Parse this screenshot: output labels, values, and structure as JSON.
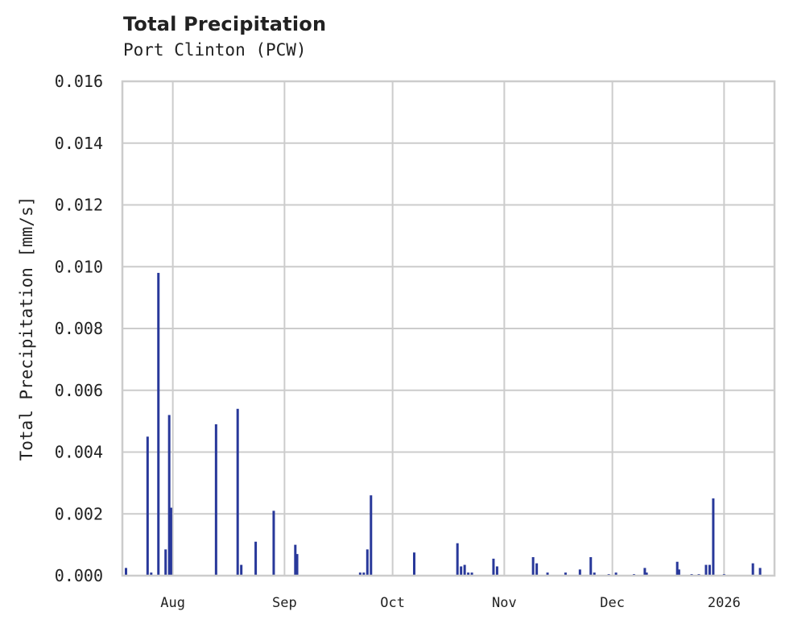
{
  "chart_data": {
    "type": "bar",
    "title": "Total Precipitation",
    "subtitle": "Port Clinton (PCW)",
    "xlabel": "",
    "ylabel": "Total Precipitation [mm/s]",
    "ylim": [
      0,
      0.016
    ],
    "yticks": [
      "0.000",
      "0.002",
      "0.004",
      "0.006",
      "0.008",
      "0.010",
      "0.012",
      "0.014",
      "0.016"
    ],
    "xlim": [
      "2025-07-18",
      "2026-01-15"
    ],
    "xticks": [
      {
        "label": "Aug",
        "date": "2025-08-01"
      },
      {
        "label": "Sep",
        "date": "2025-09-01"
      },
      {
        "label": "Oct",
        "date": "2025-10-01"
      },
      {
        "label": "Nov",
        "date": "2025-11-01"
      },
      {
        "label": "Dec",
        "date": "2025-12-01"
      },
      {
        "label": "2026",
        "date": "2026-01-01"
      }
    ],
    "grid": true,
    "legend": null,
    "bar_color": "#28389a",
    "grid_color": "#cccccc",
    "series": [
      {
        "name": "Total Precipitation",
        "points": [
          {
            "x": "2025-07-19",
            "y": 0.00025
          },
          {
            "x": "2025-07-25",
            "y": 0.0045
          },
          {
            "x": "2025-07-26",
            "y": 0.0001
          },
          {
            "x": "2025-07-28",
            "y": 0.0098
          },
          {
            "x": "2025-07-30",
            "y": 0.00085
          },
          {
            "x": "2025-07-31",
            "y": 0.0052
          },
          {
            "x": "2025-07-31T12",
            "y": 0.0022
          },
          {
            "x": "2025-08-13",
            "y": 0.0049
          },
          {
            "x": "2025-08-19",
            "y": 0.0054
          },
          {
            "x": "2025-08-20",
            "y": 0.00035
          },
          {
            "x": "2025-08-24",
            "y": 0.0011
          },
          {
            "x": "2025-08-29",
            "y": 0.0021
          },
          {
            "x": "2025-09-04",
            "y": 0.001
          },
          {
            "x": "2025-09-04T12",
            "y": 0.0007
          },
          {
            "x": "2025-09-22",
            "y": 0.0001
          },
          {
            "x": "2025-09-23",
            "y": 0.0001
          },
          {
            "x": "2025-09-24",
            "y": 0.00085
          },
          {
            "x": "2025-09-25",
            "y": 0.0026
          },
          {
            "x": "2025-10-07",
            "y": 0.00075
          },
          {
            "x": "2025-10-19",
            "y": 0.00105
          },
          {
            "x": "2025-10-20",
            "y": 0.0003
          },
          {
            "x": "2025-10-21",
            "y": 0.00035
          },
          {
            "x": "2025-10-22",
            "y": 0.0001
          },
          {
            "x": "2025-10-23",
            "y": 0.0001
          },
          {
            "x": "2025-10-29",
            "y": 0.00055
          },
          {
            "x": "2025-10-30",
            "y": 0.0003
          },
          {
            "x": "2025-11-09",
            "y": 0.0006
          },
          {
            "x": "2025-11-10",
            "y": 0.0004
          },
          {
            "x": "2025-11-13",
            "y": 0.0001
          },
          {
            "x": "2025-11-18",
            "y": 0.0001
          },
          {
            "x": "2025-11-22",
            "y": 0.0002
          },
          {
            "x": "2025-11-25",
            "y": 0.0006
          },
          {
            "x": "2025-11-26",
            "y": 0.0001
          },
          {
            "x": "2025-11-30",
            "y": 5e-05
          },
          {
            "x": "2025-12-02",
            "y": 0.0001
          },
          {
            "x": "2025-12-07",
            "y": 5e-05
          },
          {
            "x": "2025-12-10",
            "y": 0.00025
          },
          {
            "x": "2025-12-10T12",
            "y": 0.0001
          },
          {
            "x": "2025-12-19",
            "y": 0.00045
          },
          {
            "x": "2025-12-19T12",
            "y": 0.0002
          },
          {
            "x": "2025-12-23",
            "y": 5e-05
          },
          {
            "x": "2025-12-25",
            "y": 5e-05
          },
          {
            "x": "2025-12-27",
            "y": 0.00035
          },
          {
            "x": "2025-12-28",
            "y": 0.00035
          },
          {
            "x": "2025-12-29",
            "y": 0.0025
          },
          {
            "x": "2026-01-01",
            "y": 5e-05
          },
          {
            "x": "2026-01-09",
            "y": 0.0004
          },
          {
            "x": "2026-01-11",
            "y": 0.00025
          }
        ]
      }
    ]
  }
}
